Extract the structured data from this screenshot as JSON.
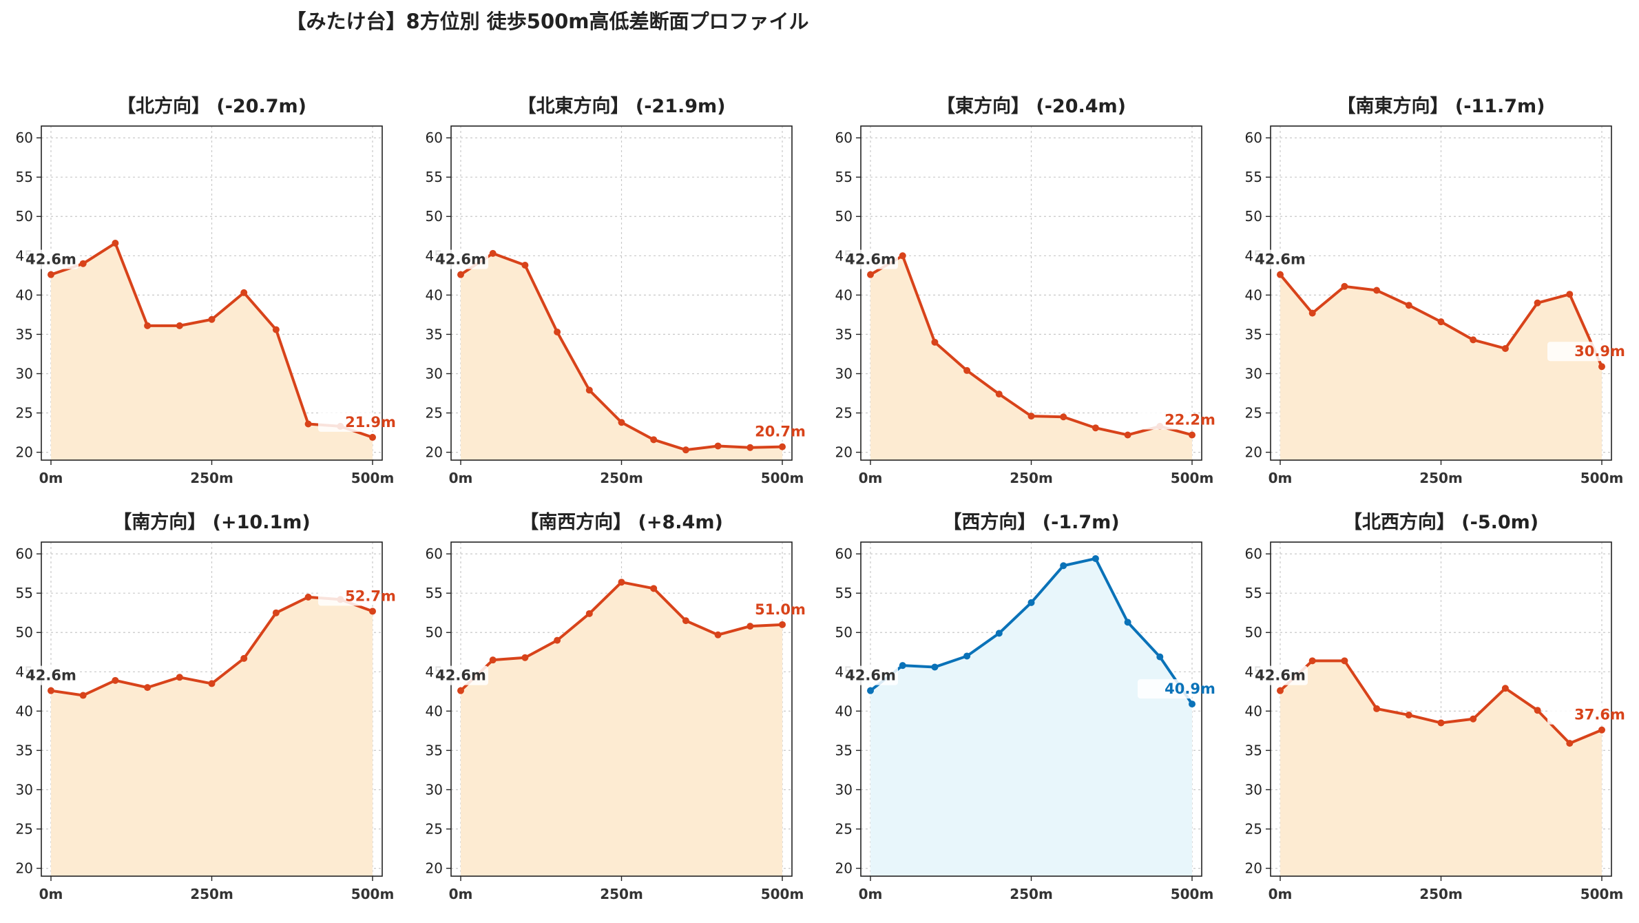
{
  "title": "【みたけ台】8方位別 徒歩500m高低差断面プロファイル",
  "colors": {
    "down_line": "#d8431a",
    "down_fill": "#fdebd2",
    "flat_line": "#0a72b8",
    "flat_fill": "#e8f6fb",
    "grid": "#c8c8c8",
    "start_label": "#333333"
  },
  "chart_data": [
    {
      "type": "area",
      "title": "【北方向】 (-20.7m)",
      "x": [
        0,
        50,
        100,
        150,
        200,
        250,
        300,
        350,
        400,
        450,
        500
      ],
      "values": [
        42.6,
        44.0,
        46.6,
        36.1,
        36.1,
        36.9,
        40.3,
        35.6,
        23.6,
        23.3,
        21.9
      ],
      "start_label": "42.6m",
      "end_label": "21.9m",
      "style": "orange",
      "xticks": [
        "0m",
        "250m",
        "500m"
      ],
      "yticks": [
        20,
        25,
        30,
        35,
        40,
        45,
        50,
        55,
        60
      ],
      "ylim": [
        19,
        61.5
      ],
      "xlim": [
        0,
        500
      ],
      "grid": true
    },
    {
      "type": "area",
      "title": "【北東方向】 (-21.9m)",
      "x": [
        0,
        50,
        100,
        150,
        200,
        250,
        300,
        350,
        400,
        450,
        500
      ],
      "values": [
        42.6,
        45.3,
        43.8,
        35.3,
        27.9,
        23.8,
        21.6,
        20.3,
        20.8,
        20.6,
        20.7
      ],
      "start_label": "42.6m",
      "end_label": "20.7m",
      "style": "orange",
      "xticks": [
        "0m",
        "250m",
        "500m"
      ],
      "yticks": [
        20,
        25,
        30,
        35,
        40,
        45,
        50,
        55,
        60
      ],
      "ylim": [
        19,
        61.5
      ],
      "xlim": [
        0,
        500
      ],
      "grid": true
    },
    {
      "type": "area",
      "title": "【東方向】 (-20.4m)",
      "x": [
        0,
        50,
        100,
        150,
        200,
        250,
        300,
        350,
        400,
        450,
        500
      ],
      "values": [
        42.6,
        45.0,
        34.0,
        30.4,
        27.4,
        24.6,
        24.5,
        23.1,
        22.2,
        23.3,
        22.2
      ],
      "start_label": "42.6m",
      "end_label": "22.2m",
      "style": "orange",
      "xticks": [
        "0m",
        "250m",
        "500m"
      ],
      "yticks": [
        20,
        25,
        30,
        35,
        40,
        45,
        50,
        55,
        60
      ],
      "ylim": [
        19,
        61.5
      ],
      "xlim": [
        0,
        500
      ],
      "grid": true
    },
    {
      "type": "area",
      "title": "【南東方向】 (-11.7m)",
      "x": [
        0,
        50,
        100,
        150,
        200,
        250,
        300,
        350,
        400,
        450,
        500
      ],
      "values": [
        42.6,
        37.7,
        41.1,
        40.6,
        38.7,
        36.6,
        34.3,
        33.2,
        39.0,
        40.1,
        30.9
      ],
      "start_label": "42.6m",
      "end_label": "30.9m",
      "style": "orange",
      "xticks": [
        "0m",
        "250m",
        "500m"
      ],
      "yticks": [
        20,
        25,
        30,
        35,
        40,
        45,
        50,
        55,
        60
      ],
      "ylim": [
        19,
        61.5
      ],
      "xlim": [
        0,
        500
      ],
      "grid": true
    },
    {
      "type": "area",
      "title": "【南方向】 (+10.1m)",
      "x": [
        0,
        50,
        100,
        150,
        200,
        250,
        300,
        350,
        400,
        450,
        500
      ],
      "values": [
        42.6,
        42.0,
        43.9,
        43.0,
        44.3,
        43.5,
        46.7,
        52.5,
        54.5,
        54.2,
        52.7
      ],
      "start_label": "42.6m",
      "end_label": "52.7m",
      "style": "orange",
      "xticks": [
        "0m",
        "250m",
        "500m"
      ],
      "yticks": [
        20,
        25,
        30,
        35,
        40,
        45,
        50,
        55,
        60
      ],
      "ylim": [
        19,
        61.5
      ],
      "xlim": [
        0,
        500
      ],
      "grid": true
    },
    {
      "type": "area",
      "title": "【南西方向】 (+8.4m)",
      "x": [
        0,
        50,
        100,
        150,
        200,
        250,
        300,
        350,
        400,
        450,
        500
      ],
      "values": [
        42.6,
        46.5,
        46.8,
        49.0,
        52.4,
        56.4,
        55.6,
        51.5,
        49.7,
        50.8,
        51.0
      ],
      "start_label": "42.6m",
      "end_label": "51.0m",
      "style": "orange",
      "xticks": [
        "0m",
        "250m",
        "500m"
      ],
      "yticks": [
        20,
        25,
        30,
        35,
        40,
        45,
        50,
        55,
        60
      ],
      "ylim": [
        19,
        61.5
      ],
      "xlim": [
        0,
        500
      ],
      "grid": true
    },
    {
      "type": "area",
      "title": "【西方向】 (-1.7m)",
      "x": [
        0,
        50,
        100,
        150,
        200,
        250,
        300,
        350,
        400,
        450,
        500
      ],
      "values": [
        42.6,
        45.8,
        45.6,
        47.0,
        49.9,
        53.8,
        58.5,
        59.4,
        51.3,
        46.9,
        40.9
      ],
      "start_label": "42.6m",
      "end_label": "40.9m",
      "style": "blue",
      "xticks": [
        "0m",
        "250m",
        "500m"
      ],
      "yticks": [
        20,
        25,
        30,
        35,
        40,
        45,
        50,
        55,
        60
      ],
      "ylim": [
        19,
        61.5
      ],
      "xlim": [
        0,
        500
      ],
      "grid": true
    },
    {
      "type": "area",
      "title": "【北西方向】 (-5.0m)",
      "x": [
        0,
        50,
        100,
        150,
        200,
        250,
        300,
        350,
        400,
        450,
        500
      ],
      "values": [
        42.6,
        46.4,
        46.4,
        40.3,
        39.5,
        38.5,
        39.0,
        42.9,
        40.1,
        35.9,
        37.6
      ],
      "start_label": "42.6m",
      "end_label": "37.6m",
      "style": "orange",
      "xticks": [
        "0m",
        "250m",
        "500m"
      ],
      "yticks": [
        20,
        25,
        30,
        35,
        40,
        45,
        50,
        55,
        60
      ],
      "ylim": [
        19,
        61.5
      ],
      "xlim": [
        0,
        500
      ],
      "grid": true
    }
  ]
}
